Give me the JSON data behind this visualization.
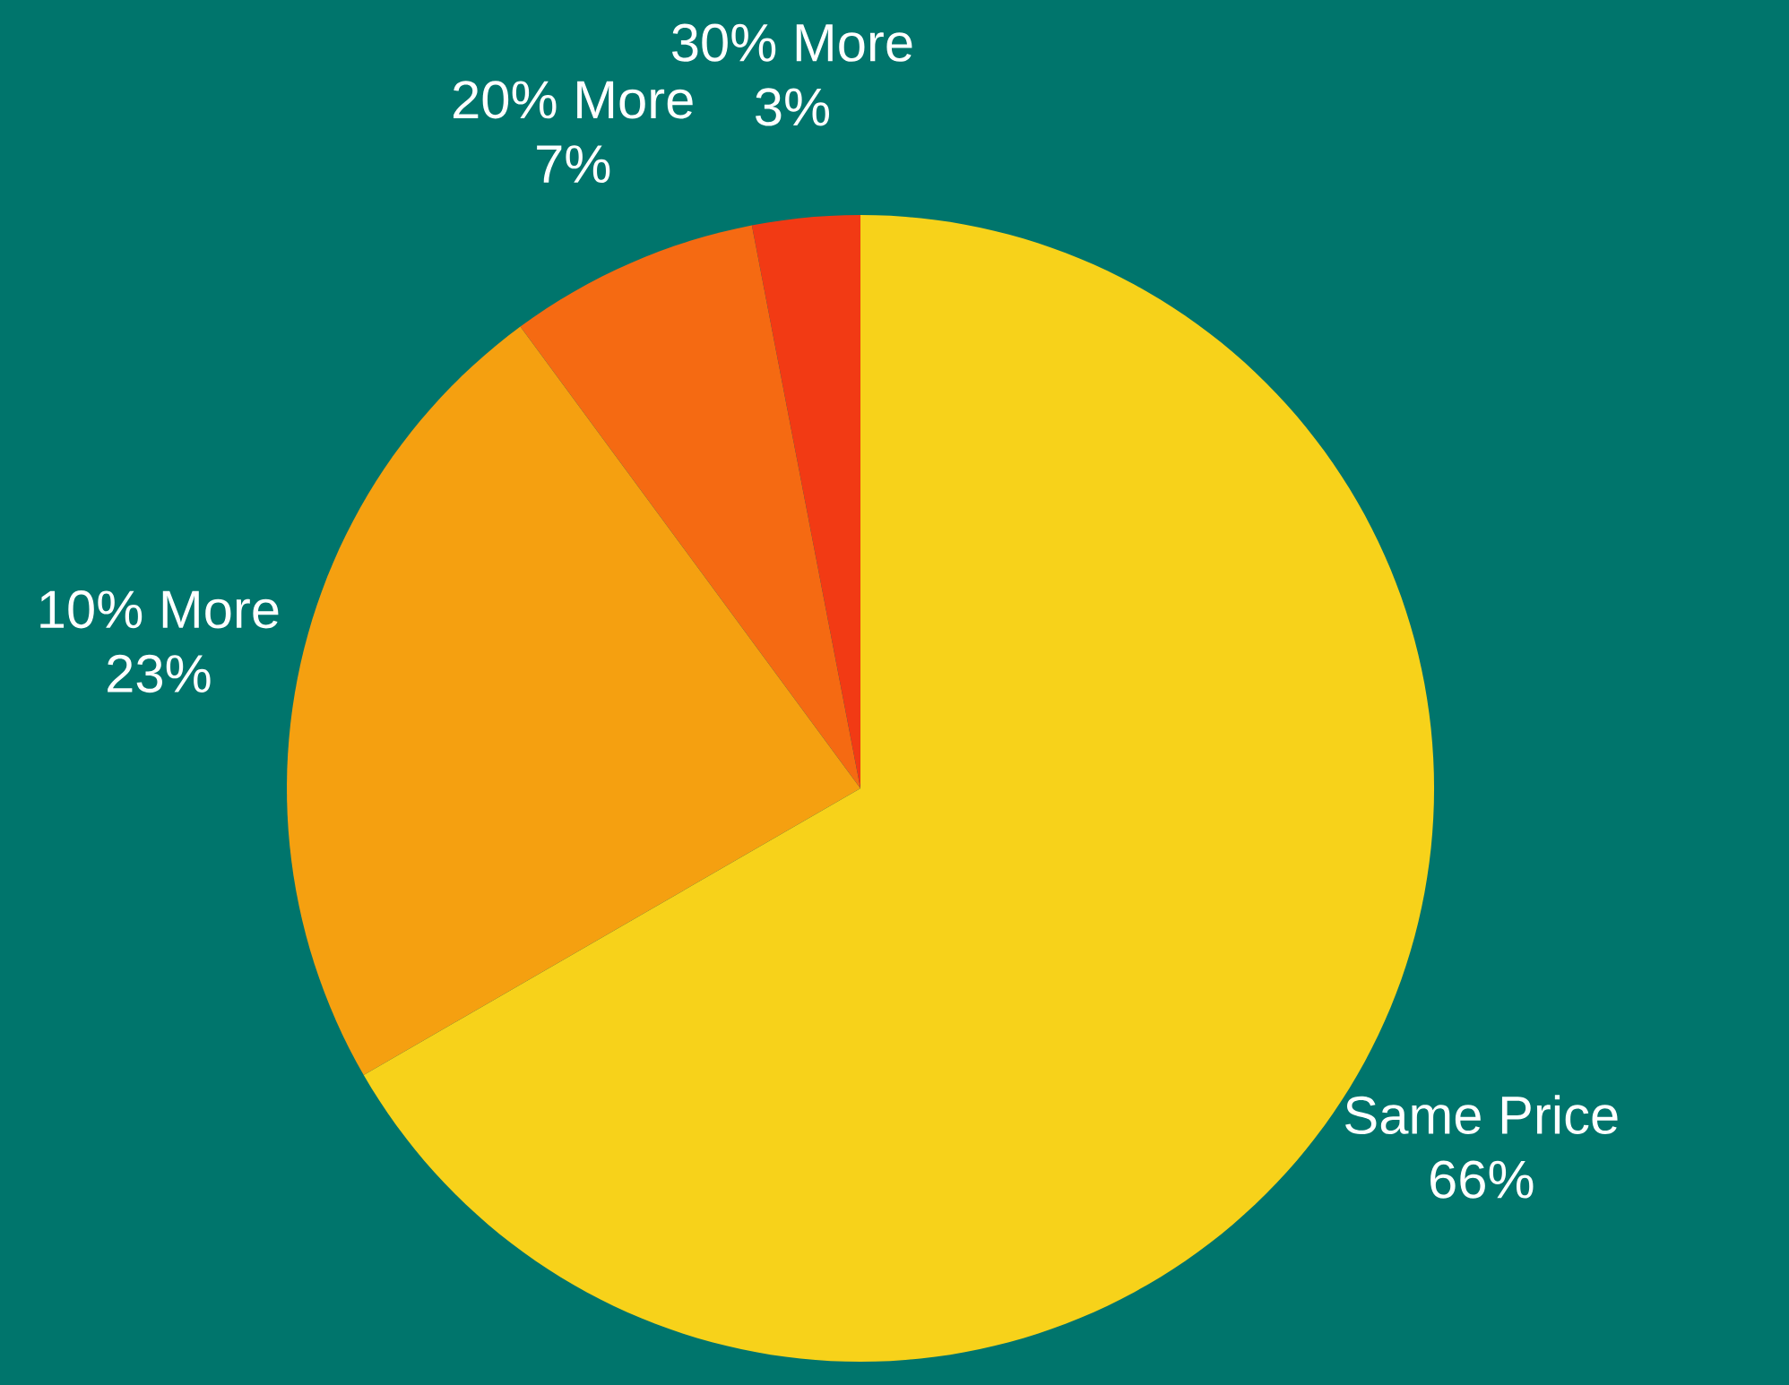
{
  "chart_data": {
    "type": "pie",
    "categories": [
      "Same Price",
      "10% More",
      "20% More",
      "30% More"
    ],
    "values": [
      66,
      23,
      7,
      3
    ],
    "value_labels": [
      "66%",
      "23%",
      "7%",
      "3%"
    ],
    "colors": [
      "#f7d21a",
      "#f5a010",
      "#f56a12",
      "#f23a14"
    ]
  }
}
